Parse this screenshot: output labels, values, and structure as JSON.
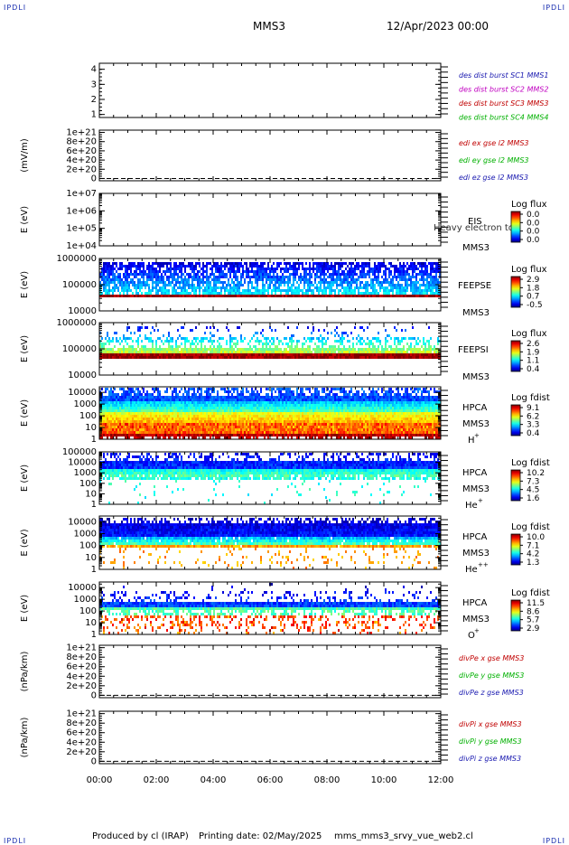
{
  "header": {
    "corner_label": "IPDLI",
    "spacecraft": "MMS3",
    "datetime": "12/Apr/2023 00:00"
  },
  "footer": {
    "produced_by": "Produced by cl (IRAP)",
    "printing_date": "Printing date: 02/May/2025",
    "script_name": "mms_mms3_srvy_vue_web2.cl"
  },
  "x_axis": {
    "ticks": [
      "00:00",
      "02:00",
      "04:00",
      "06:00",
      "08:00",
      "10:00",
      "12:00"
    ],
    "range_hours": [
      0,
      12
    ]
  },
  "colors": {
    "blue": "#1a1ab0",
    "magenta": "#c000c0",
    "red": "#c00000",
    "green": "#00b000"
  },
  "chart_data": [
    {
      "type": "line",
      "id": "dist",
      "ylabel": "",
      "yticks": [
        "1",
        "2",
        "3",
        "4"
      ],
      "ylim": [
        0.8,
        4.4
      ],
      "legend": [
        {
          "text": "des dist burst SC1 MMS1",
          "color": "#1a1ab0"
        },
        {
          "text": "des dist burst SC2 MMS2",
          "color": "#c000c0"
        },
        {
          "text": "des dist burst SC3 MMS3",
          "color": "#c00000"
        },
        {
          "text": "des dist burst SC4 MMS4",
          "color": "#00b000"
        }
      ]
    },
    {
      "type": "line",
      "id": "edi",
      "ylabel": "(mV/m)",
      "yticks": [
        "0",
        "2e+20",
        "4e+20",
        "6e+20",
        "8e+20",
        "1e+21"
      ],
      "ylim": [
        -5e+19,
        1.05e+21
      ],
      "dashed_zero": true,
      "legend": [
        {
          "text": "edi ex gse l2 MMS3",
          "color": "#c00000"
        },
        {
          "text": "edi ey gse l2 MMS3",
          "color": "#00b000"
        },
        {
          "text": "edi ez gse l2 MMS3",
          "color": "#1a1ab0"
        }
      ]
    },
    {
      "type": "heatmap",
      "id": "eis",
      "ylabel": "E (eV)",
      "yticks": [
        "1e+04",
        "1e+05",
        "1e+06",
        "1e+07"
      ],
      "ylim": [
        10000,
        10000000
      ],
      "log": true,
      "empty": true,
      "instrument": "EIS",
      "spacecraft": "MMS3",
      "overlay_text": "Heavy electron tof",
      "colorbar_label": "Log flux",
      "colorbar_ticks": [
        "0.0",
        "0.0",
        "0.0",
        "0.0"
      ]
    },
    {
      "type": "heatmap",
      "id": "feepse",
      "ylabel": "E (eV)",
      "yticks": [
        "10000",
        "100000",
        "1000000"
      ],
      "ylim": [
        10000,
        1000000
      ],
      "log": true,
      "instrument": "FEEPSE",
      "spacecraft": "MMS3",
      "colorbar_label": "Log flux",
      "colorbar_ticks": [
        "2.9",
        "1.8",
        "0.7",
        "-0.5"
      ]
    },
    {
      "type": "heatmap",
      "id": "feepsi",
      "ylabel": "E (eV)",
      "yticks": [
        "10000",
        "100000",
        "1000000"
      ],
      "ylim": [
        10000,
        1000000
      ],
      "log": true,
      "instrument": "FEEPSI",
      "spacecraft": "MMS3",
      "colorbar_label": "Log flux",
      "colorbar_ticks": [
        "2.6",
        "1.9",
        "1.1",
        "0.4"
      ]
    },
    {
      "type": "heatmap",
      "id": "hpca_h",
      "ylabel": "E (eV)",
      "yticks": [
        "1",
        "10",
        "100",
        "1000",
        "10000"
      ],
      "ylim": [
        1,
        30000
      ],
      "log": true,
      "instrument": "HPCA",
      "spacecraft": "MMS3",
      "species": "H",
      "species_sup": "+",
      "colorbar_label": "Log fdist",
      "colorbar_ticks": [
        "9.1",
        "6.2",
        "3.3",
        "0.4"
      ]
    },
    {
      "type": "heatmap",
      "id": "hpca_he1",
      "ylabel": "E (eV)",
      "yticks": [
        "1",
        "10",
        "100",
        "1000",
        "10000",
        "100000"
      ],
      "ylim": [
        1,
        100000
      ],
      "log": true,
      "instrument": "HPCA",
      "spacecraft": "MMS3",
      "species": "He",
      "species_sup": "+",
      "colorbar_label": "Log fdist",
      "colorbar_ticks": [
        "10.2",
        "7.3",
        "4.5",
        "1.6"
      ]
    },
    {
      "type": "heatmap",
      "id": "hpca_he2",
      "ylabel": "E (eV)",
      "yticks": [
        "1",
        "10",
        "100",
        "1000",
        "10000"
      ],
      "ylim": [
        1,
        30000
      ],
      "log": true,
      "instrument": "HPCA",
      "spacecraft": "MMS3",
      "species": "He",
      "species_sup": "++",
      "colorbar_label": "Log fdist",
      "colorbar_ticks": [
        "10.0",
        "7.1",
        "4.2",
        "1.3"
      ]
    },
    {
      "type": "heatmap",
      "id": "hpca_o",
      "ylabel": "E (eV)",
      "yticks": [
        "1",
        "10",
        "100",
        "1000",
        "10000"
      ],
      "ylim": [
        1,
        30000
      ],
      "log": true,
      "instrument": "HPCA",
      "spacecraft": "MMS3",
      "species": "O",
      "species_sup": "+",
      "colorbar_label": "Log fdist",
      "colorbar_ticks": [
        "11.5",
        "8.6",
        "5.7",
        "2.9"
      ]
    },
    {
      "type": "line",
      "id": "divpe",
      "ylabel": "(nPa/km)",
      "yticks": [
        "0",
        "2e+20",
        "4e+20",
        "6e+20",
        "8e+20",
        "1e+21"
      ],
      "ylim": [
        -5e+19,
        1.05e+21
      ],
      "dashed_zero": true,
      "legend": [
        {
          "text": "divPe x gse MMS3",
          "color": "#c00000"
        },
        {
          "text": "divPe y gse MMS3",
          "color": "#00b000"
        },
        {
          "text": "divPe z gse MMS3",
          "color": "#1a1ab0"
        }
      ]
    },
    {
      "type": "line",
      "id": "divpi",
      "ylabel": "(nPa/km)",
      "yticks": [
        "0",
        "2e+20",
        "4e+20",
        "6e+20",
        "8e+20",
        "1e+21"
      ],
      "ylim": [
        -5e+19,
        1.05e+21
      ],
      "dashed_zero": true,
      "legend": [
        {
          "text": "divPi x gse MMS3",
          "color": "#c00000"
        },
        {
          "text": "divPi y gse MMS3",
          "color": "#00b000"
        },
        {
          "text": "divPi z gse MMS3",
          "color": "#1a1ab0"
        }
      ]
    }
  ]
}
